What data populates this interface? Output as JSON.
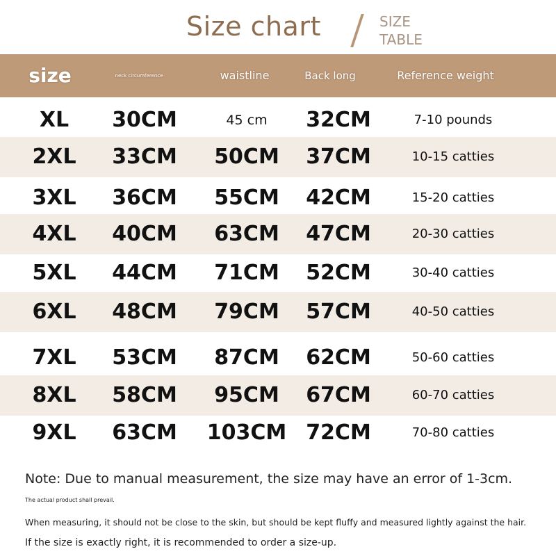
{
  "title": "Size chart",
  "subtitle": [
    "SIZE",
    "TABLE"
  ],
  "colors": {
    "header_bg": "#bf9a78",
    "title": "#8e6c50",
    "stripe": "#f3ece5"
  },
  "headers": [
    "size",
    "neck circumference",
    "waistline",
    "Back long",
    "Reference weight"
  ],
  "rows": [
    [
      "XL",
      "30CM",
      "45 cm",
      "32CM",
      "7-10 pounds"
    ],
    [
      "2XL",
      "33CM",
      "50CM",
      "37CM",
      "10-15 catties"
    ],
    [
      "3XL",
      "36CM",
      "55CM",
      "42CM",
      "15-20 catties"
    ],
    [
      "4XL",
      "40CM",
      "63CM",
      "47CM",
      "20-30 catties"
    ],
    [
      "5XL",
      "44CM",
      "71CM",
      "52CM",
      "30-40 catties"
    ],
    [
      "6XL",
      "48CM",
      "79CM",
      "57CM",
      "40-50 catties"
    ],
    [
      "7XL",
      "53CM",
      "87CM",
      "62CM",
      "50-60 catties"
    ],
    [
      "8XL",
      "58CM",
      "95CM",
      "67CM",
      "60-70 catties"
    ],
    [
      "9XL",
      "63CM",
      "103CM",
      "72CM",
      "70-80 catties"
    ]
  ],
  "notes": [
    "Note: Due to manual measurement, the size may have an error of 1-3cm.",
    "The actual product shall prevail.",
    "When measuring, it should not be close to the skin, but should be kept fluffy and measured lightly against the hair.",
    "If the size is exactly right, it is recommended to order a size-up."
  ]
}
